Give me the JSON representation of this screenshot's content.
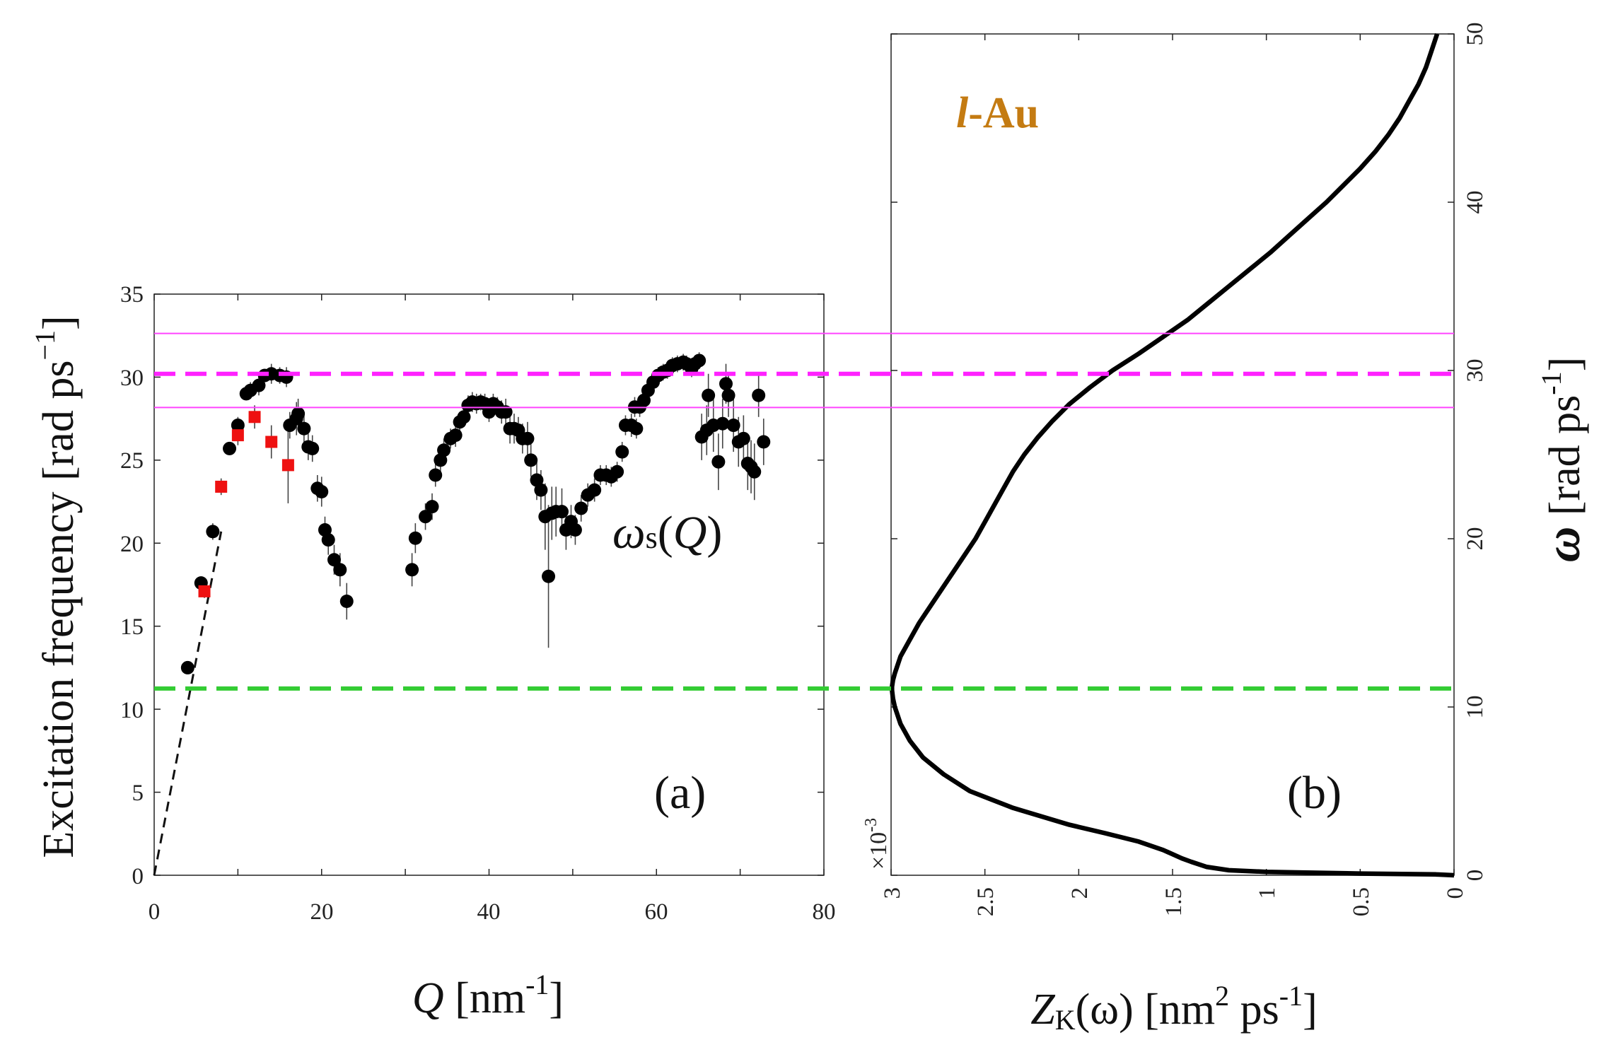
{
  "chart_data": [
    {
      "id": "panel-a",
      "type": "scatter",
      "panel_label": "(a)",
      "xlabel": "Q [nm",
      "xlabel_sup": "-1",
      "xlabel_close": "]",
      "ylabel": "Excitation frequency [rad ps",
      "ylabel_sup": "−1",
      "ylabel_close": "]",
      "xlim": [
        0,
        80
      ],
      "ylim": [
        0,
        35
      ],
      "xticks": [
        "0",
        "20",
        "40",
        "60",
        "80"
      ],
      "yticks": [
        "0",
        "5",
        "10",
        "15",
        "20",
        "25",
        "30",
        "35"
      ],
      "annotation": "ωs(Q)",
      "series": [
        {
          "name": "black circles",
          "color": "#000000",
          "points": [
            [
              4,
              12.5,
              0.3
            ],
            [
              5.6,
              17.6,
              0.4
            ],
            [
              7,
              20.7,
              0.5
            ],
            [
              9,
              25.7,
              0.4
            ],
            [
              10,
              27.1,
              0.5
            ],
            [
              11,
              29,
              0.4
            ],
            [
              11.5,
              29.2,
              0.5
            ],
            [
              12.5,
              29.5,
              0.6
            ],
            [
              13.2,
              30.1,
              0.4
            ],
            [
              14,
              30.2,
              0.6
            ],
            [
              15,
              30.1,
              0.5
            ],
            [
              15.8,
              30,
              0.6
            ],
            [
              16.2,
              27.1,
              0.8
            ],
            [
              17,
              27.5,
              1
            ],
            [
              17.2,
              27.8,
              0.9
            ],
            [
              17.9,
              26.9,
              1
            ],
            [
              18.4,
              25.8,
              0.8
            ],
            [
              18.9,
              25.7,
              0.8
            ],
            [
              19.5,
              23.3,
              0.8
            ],
            [
              20,
              23.1,
              0.9
            ],
            [
              20.4,
              20.8,
              0.8
            ],
            [
              20.8,
              20.2,
              0.9
            ],
            [
              21.5,
              19,
              0.9
            ],
            [
              22.2,
              18.4,
              1
            ],
            [
              23,
              16.5,
              1.1
            ],
            [
              30.8,
              18.4,
              1
            ],
            [
              31.2,
              20.3,
              0.9
            ],
            [
              32.4,
              21.6,
              0.8
            ],
            [
              33.2,
              22.2,
              0.8
            ],
            [
              33.6,
              24.1,
              0.7
            ],
            [
              34.2,
              25,
              0.7
            ],
            [
              34.6,
              25.6,
              0.7
            ],
            [
              35.4,
              26.3,
              0.6
            ],
            [
              36,
              26.5,
              0.7
            ],
            [
              36.5,
              27.3,
              0.6
            ],
            [
              37,
              27.6,
              0.6
            ],
            [
              37.5,
              28.3,
              0.6
            ],
            [
              38,
              28.5,
              0.6
            ],
            [
              38.5,
              28.4,
              0.6
            ],
            [
              39,
              28.5,
              0.5
            ],
            [
              39.5,
              28.4,
              0.6
            ],
            [
              40,
              27.9,
              0.6
            ],
            [
              40.5,
              28.4,
              0.6
            ],
            [
              41,
              28.2,
              0.6
            ],
            [
              41.5,
              27.9,
              0.7
            ],
            [
              42,
              27.9,
              0.8
            ],
            [
              42.5,
              26.9,
              0.9
            ],
            [
              43,
              26.9,
              0.9
            ],
            [
              43.5,
              26.8,
              0.8
            ],
            [
              44,
              26.3,
              0.9
            ],
            [
              44.6,
              26.3,
              1
            ],
            [
              45,
              25,
              1
            ],
            [
              45.7,
              23.8,
              1.2
            ],
            [
              46.2,
              23.2,
              1.2
            ],
            [
              46.7,
              21.6,
              2
            ],
            [
              47.1,
              18,
              4.3
            ],
            [
              47.5,
              21.8,
              1.6
            ],
            [
              48,
              21.9,
              1.5
            ],
            [
              48.7,
              21.9,
              1.4
            ],
            [
              49.2,
              20.8,
              1.2
            ],
            [
              49.8,
              21.3,
              1
            ],
            [
              50.3,
              20.8,
              0.9
            ],
            [
              51,
              22.1,
              0.8
            ],
            [
              51.8,
              22.9,
              0.7
            ],
            [
              52.6,
              23.2,
              0.7
            ],
            [
              53.3,
              24.1,
              0.6
            ],
            [
              54,
              24.1,
              0.6
            ],
            [
              54.6,
              24,
              0.6
            ],
            [
              55.3,
              24.3,
              0.6
            ],
            [
              55.9,
              25.5,
              0.6
            ],
            [
              56.3,
              27.1,
              0.6
            ],
            [
              57,
              27.1,
              0.7
            ],
            [
              57.6,
              26.9,
              0.6
            ],
            [
              57.4,
              28.2,
              0.6
            ],
            [
              58,
              28.2,
              0.6
            ],
            [
              58.5,
              28.6,
              0.6
            ],
            [
              59,
              29.2,
              0.6
            ],
            [
              59.6,
              29.7,
              0.6
            ],
            [
              60.2,
              30.1,
              0.5
            ],
            [
              60.8,
              30.3,
              0.5
            ],
            [
              61.3,
              30.4,
              0.5
            ],
            [
              61.9,
              30.7,
              0.5
            ],
            [
              62.5,
              30.8,
              0.5
            ],
            [
              63.2,
              30.9,
              0.5
            ],
            [
              63.6,
              30.8,
              0.5
            ],
            [
              64.2,
              30.5,
              0.5
            ],
            [
              64.6,
              30.8,
              0.5
            ],
            [
              65.1,
              31,
              0.5
            ],
            [
              65.4,
              26.4,
              1.4
            ],
            [
              66,
              26.8,
              1.5
            ],
            [
              66.2,
              28.9,
              1.3
            ],
            [
              66.8,
              27.1,
              1.6
            ],
            [
              67.4,
              24.9,
              1.7
            ],
            [
              67.9,
              27.2,
              1.5
            ],
            [
              68.3,
              29.6,
              1.2
            ],
            [
              68.6,
              28.9,
              1.3
            ],
            [
              69.2,
              27.1,
              1.6
            ],
            [
              69.8,
              26.1,
              1.5
            ],
            [
              70.4,
              26.3,
              1.4
            ],
            [
              70.9,
              24.8,
              1.6
            ],
            [
              71.3,
              24.6,
              1.6
            ],
            [
              71.7,
              24.3,
              1.7
            ],
            [
              72.2,
              28.9,
              1.3
            ],
            [
              72.8,
              26.1,
              1.4
            ]
          ]
        },
        {
          "name": "red squares",
          "color": "#ee1111",
          "points": [
            [
              6,
              17.1,
              0.4
            ],
            [
              8,
              23.4,
              0.5
            ],
            [
              10,
              26.5,
              0.6
            ],
            [
              12,
              27.6,
              0.7
            ],
            [
              14,
              26.1,
              1
            ],
            [
              16,
              24.7,
              2.3
            ]
          ]
        }
      ],
      "dashed_fit": {
        "x": [
          0,
          8
        ],
        "y": [
          0,
          20.7
        ],
        "color": "#111111"
      }
    },
    {
      "id": "panel-b",
      "type": "line",
      "panel_label": "(b)",
      "title_italic": "l",
      "title_rest": "-Au",
      "title_color": "#c47b12",
      "xlabel_Z": "Z",
      "xlabel_K": "K",
      "xlabel_omega": "(ω) [nm",
      "xlabel_sup2": "2",
      "xlabel_ps": " ps",
      "xlabel_supm1": "-1",
      "xlabel_close": "]",
      "multiplier": "×10",
      "multiplier_exp": "-3",
      "ylabel_omega": "ω",
      "ylabel_units": " [rad ps",
      "ylabel_sup": "-1",
      "ylabel_close": "]",
      "xlim": [
        3,
        0
      ],
      "ylim": [
        0,
        50
      ],
      "xticks": [
        "3",
        "2.5",
        "2",
        "1.5",
        "1",
        "0.5",
        "0"
      ],
      "yticks": [
        "0",
        "10",
        "20",
        "30",
        "40",
        "50"
      ],
      "curve": {
        "name": "Z_K(omega)",
        "color": "#000000",
        "omega": [
          0,
          0.05,
          0.1,
          0.2,
          0.3,
          0.5,
          0.8,
          1,
          1.5,
          2,
          2.5,
          3,
          4,
          5,
          6,
          7,
          8,
          9,
          10,
          10.5,
          11,
          11.2,
          11.6,
          12,
          13,
          14,
          15,
          16,
          17,
          18,
          19,
          20,
          21,
          22,
          23,
          24,
          25,
          26,
          27,
          28,
          29,
          30,
          31,
          32,
          33,
          34,
          35,
          36,
          37,
          38,
          39,
          40,
          41,
          42,
          43,
          44,
          45,
          46,
          47,
          48,
          49,
          50
        ],
        "Z": [
          0.0,
          0.1,
          0.5,
          1.0,
          1.2,
          1.32,
          1.4,
          1.45,
          1.55,
          1.68,
          1.86,
          2.05,
          2.35,
          2.58,
          2.72,
          2.83,
          2.9,
          2.95,
          2.98,
          2.99,
          2.995,
          2.995,
          2.99,
          2.98,
          2.95,
          2.9,
          2.85,
          2.79,
          2.73,
          2.67,
          2.61,
          2.55,
          2.5,
          2.45,
          2.4,
          2.35,
          2.29,
          2.22,
          2.14,
          2.05,
          1.94,
          1.82,
          1.68,
          1.55,
          1.42,
          1.31,
          1.2,
          1.09,
          0.98,
          0.88,
          0.78,
          0.68,
          0.59,
          0.5,
          0.42,
          0.35,
          0.29,
          0.24,
          0.19,
          0.15,
          0.12,
          0.09
        ]
      }
    }
  ],
  "reference_lines": [
    {
      "name": "magenta-thin-upper",
      "omega": 32.2,
      "color": "#ff44ff",
      "style": "solid"
    },
    {
      "name": "magenta-dashed",
      "omega": 29.8,
      "color": "#ff22ff",
      "style": "dashed"
    },
    {
      "name": "magenta-thin-lower",
      "omega": 27.8,
      "color": "#ff44ff",
      "style": "solid"
    },
    {
      "name": "green-dashed",
      "omega": 11.1,
      "color": "#33cc33",
      "style": "dashed"
    }
  ]
}
